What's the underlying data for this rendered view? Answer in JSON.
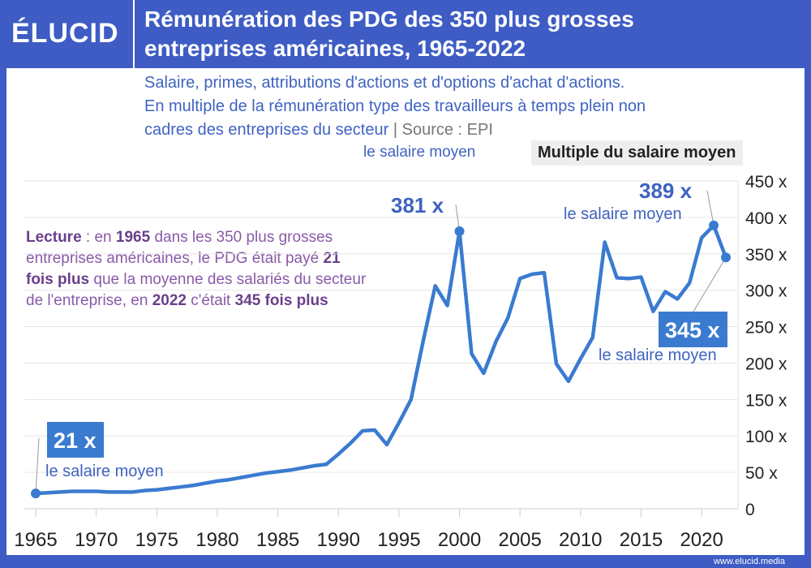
{
  "brand": {
    "logo": "ÉLUCID",
    "footer": "www.elucid.media",
    "header_color": "#3e5cc4",
    "line_color": "#3a7bd0"
  },
  "header": {
    "title_line1": "Rémunération des PDG des 350 plus grosses",
    "title_line2": "entreprises américaines, 1965-2022"
  },
  "subtitle": {
    "line1": "Salaire, primes, attributions d'actions et d'options d'achat d'actions.",
    "line2": "En multiple de la rémunération type des travailleurs à temps plein non",
    "line3": "cadres des entreprises du secteur",
    "sep": "|",
    "source": "Source : EPI"
  },
  "stray_label": "le salaire moyen",
  "lecture": {
    "p1": "Lecture",
    "p2": " : en ",
    "p3": "1965",
    "p4": " dans les 350 plus grosses entreprises américaines, le PDG était payé ",
    "p5": "21 fois plus",
    "p6": " que la moyenne des salariés du secteur de l'entreprise, en ",
    "p7": "2022",
    "p8": " c'était ",
    "p9": "345 fois plus"
  },
  "chart_data": {
    "type": "line",
    "ylabel": "Multiple du salaire moyen",
    "ylim": [
      0,
      450
    ],
    "xlim": [
      1965,
      2022
    ],
    "grid": true,
    "x_ticks": [
      1965,
      1970,
      1975,
      1980,
      1985,
      1990,
      1995,
      2000,
      2005,
      2010,
      2015,
      2020
    ],
    "x_tick_labels": [
      "1965",
      "1970",
      "1975",
      "1980",
      "1985",
      "1990",
      "1995",
      "2000",
      "2005",
      "2010",
      "2015",
      "2020"
    ],
    "y_ticks": [
      0,
      50,
      100,
      150,
      200,
      250,
      300,
      350,
      400,
      450
    ],
    "y_tick_labels": [
      "0",
      "50 x",
      "100 x",
      "150 x",
      "200 x",
      "250 x",
      "300 x",
      "350 x",
      "400 x",
      "450 x"
    ],
    "x": [
      1965,
      1966,
      1967,
      1968,
      1969,
      1970,
      1971,
      1972,
      1973,
      1974,
      1975,
      1976,
      1977,
      1978,
      1979,
      1980,
      1981,
      1982,
      1983,
      1984,
      1985,
      1986,
      1987,
      1988,
      1989,
      1990,
      1991,
      1992,
      1993,
      1994,
      1995,
      1996,
      1997,
      1998,
      1999,
      2000,
      2001,
      2002,
      2003,
      2004,
      2005,
      2006,
      2007,
      2008,
      2009,
      2010,
      2011,
      2012,
      2013,
      2014,
      2015,
      2016,
      2017,
      2018,
      2019,
      2020,
      2021,
      2022
    ],
    "values": [
      21,
      22,
      23,
      24,
      24,
      24,
      23,
      23,
      23,
      25,
      26,
      28,
      30,
      32,
      35,
      38,
      40,
      43,
      46,
      49,
      51,
      53,
      56,
      59,
      61,
      75,
      90,
      107,
      108,
      88,
      118,
      150,
      230,
      306,
      279,
      381,
      213,
      186,
      229,
      262,
      316,
      322,
      324,
      199,
      175,
      206,
      235,
      366,
      317,
      316,
      318,
      271,
      298,
      288,
      310,
      372,
      389,
      345
    ],
    "annotations": [
      {
        "year": 1965,
        "value_label": "21 x",
        "text": "le salaire moyen",
        "boxed": true
      },
      {
        "year": 2000,
        "value_label": "381 x",
        "boxed": false
      },
      {
        "year": 2021,
        "value_label": "389 x",
        "text": "le salaire moyen",
        "boxed": false
      },
      {
        "year": 2022,
        "value_label": "345 x",
        "text": "le salaire moyen",
        "boxed": true
      }
    ]
  }
}
